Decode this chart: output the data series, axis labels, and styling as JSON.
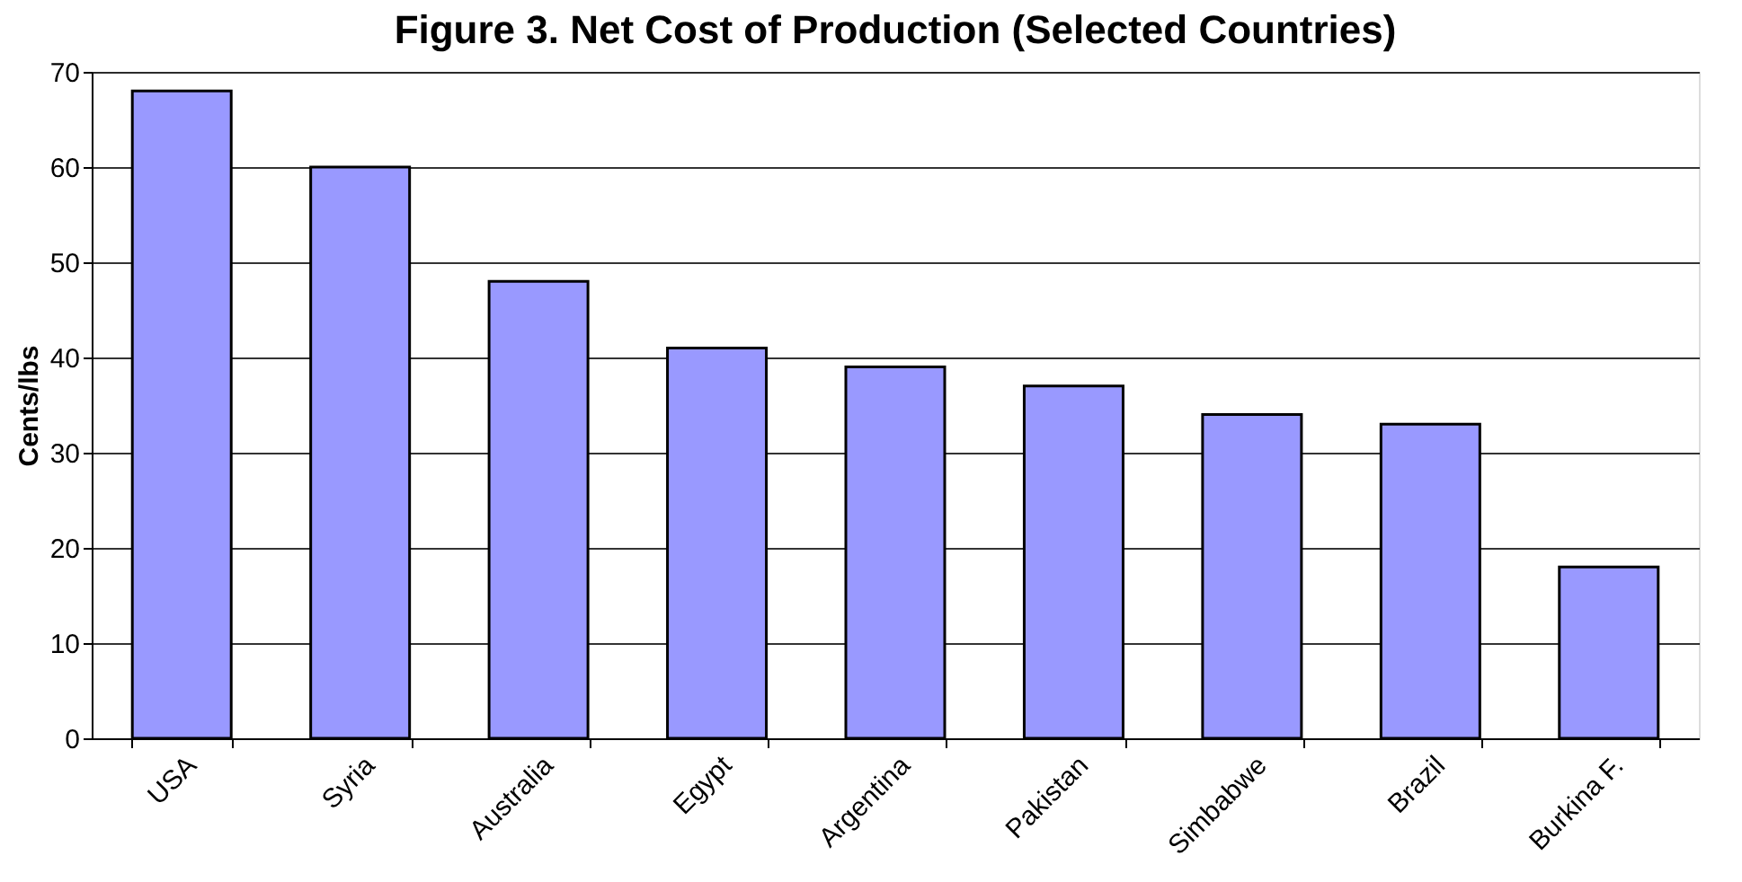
{
  "chart_data": {
    "type": "bar",
    "title": "Figure 3. Net Cost of Production (Selected Countries)",
    "ylabel": "Cents/lbs",
    "categories": [
      "USA",
      "Syria",
      "Australia",
      "Egypt",
      "Argentina",
      "Pakistan",
      "Simbabwe",
      "Brazil",
      "Burkina F."
    ],
    "values": [
      68,
      60,
      48,
      41,
      39,
      37,
      34,
      33,
      18
    ],
    "color": "#9999ff",
    "ylim": [
      0,
      70
    ],
    "yticks": [
      0,
      10,
      20,
      30,
      40,
      50,
      60,
      70
    ],
    "grid": "y"
  }
}
